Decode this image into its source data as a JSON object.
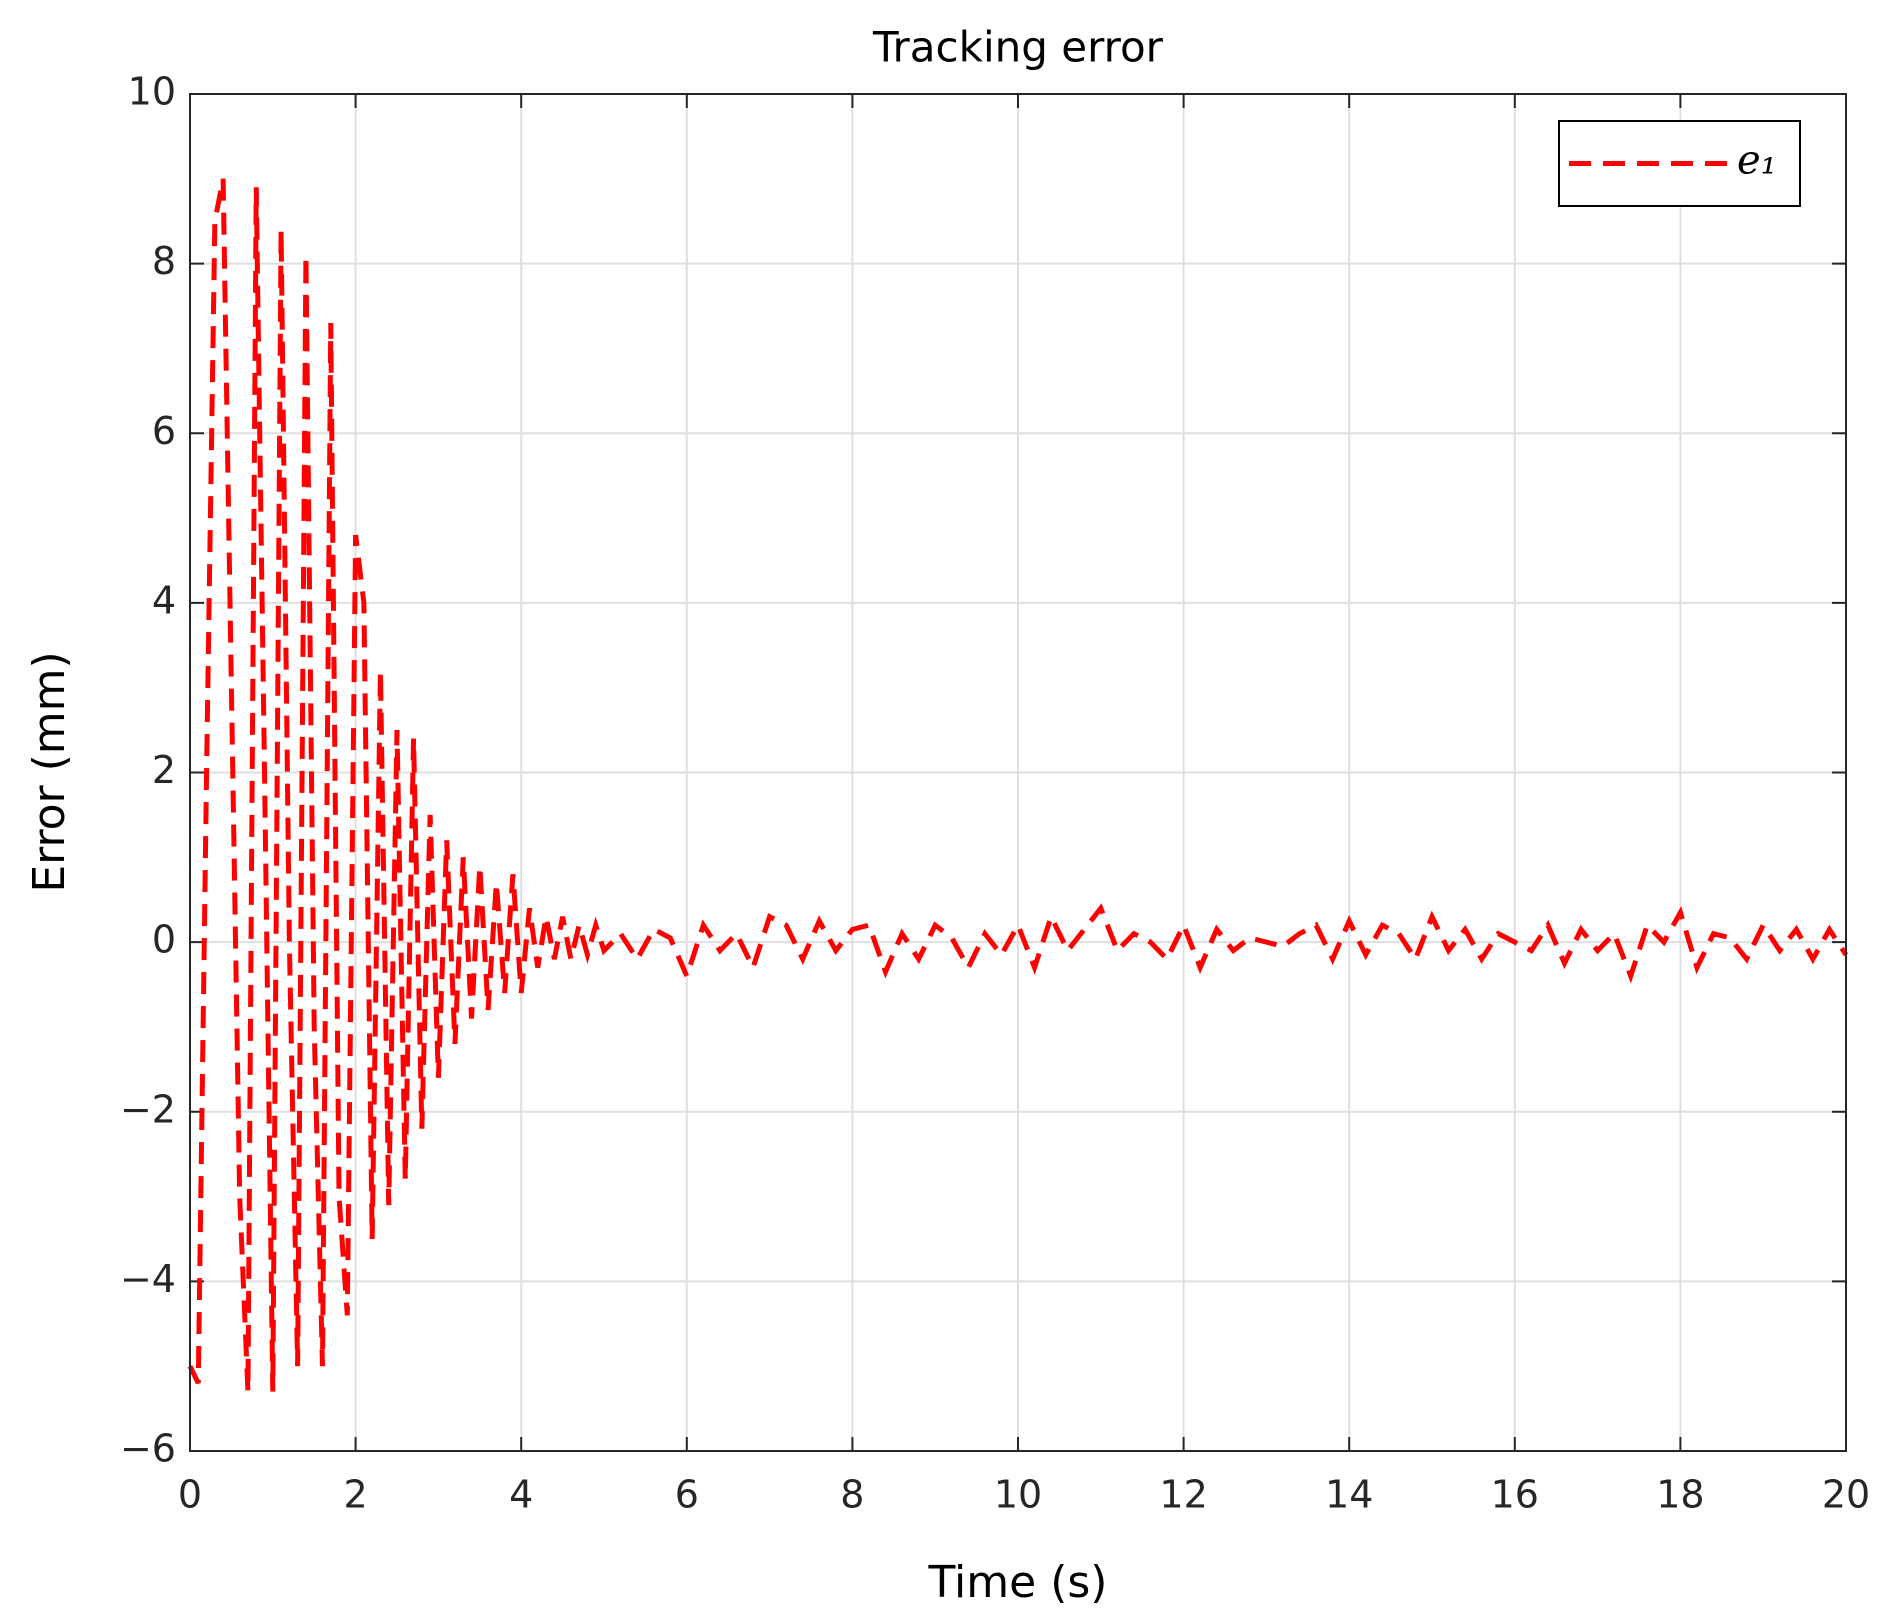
{
  "chart_data": {
    "type": "line",
    "title": "Tracking error",
    "xlabel": "Time (s)",
    "ylabel": "Error (mm)",
    "x": [
      0,
      0.1,
      0.2,
      0.3,
      0.4,
      0.5,
      0.6,
      0.7,
      0.8,
      0.9,
      1.0,
      1.1,
      1.2,
      1.3,
      1.4,
      1.5,
      1.6,
      1.7,
      1.8,
      1.9,
      2.0,
      2.1,
      2.2,
      2.3,
      2.4,
      2.5,
      2.6,
      2.7,
      2.8,
      2.9,
      3.0,
      3.1,
      3.2,
      3.3,
      3.4,
      3.5,
      3.6,
      3.7,
      3.8,
      3.9,
      4.0,
      4.1,
      4.2,
      4.3,
      4.4,
      4.5,
      4.6,
      4.7,
      4.8,
      4.9,
      5.0,
      5.2,
      5.4,
      5.6,
      5.8,
      6.0,
      6.2,
      6.4,
      6.6,
      6.8,
      7.0,
      7.2,
      7.4,
      7.6,
      7.8,
      8.0,
      8.2,
      8.4,
      8.6,
      8.8,
      9.0,
      9.2,
      9.4,
      9.6,
      9.8,
      10.0,
      10.2,
      10.4,
      10.6,
      10.8,
      11.0,
      11.2,
      11.4,
      11.6,
      11.8,
      12.0,
      12.2,
      12.4,
      12.6,
      12.8,
      13.0,
      13.2,
      13.4,
      13.6,
      13.8,
      14.0,
      14.2,
      14.4,
      14.6,
      14.8,
      15.0,
      15.2,
      15.4,
      15.6,
      15.8,
      16.0,
      16.2,
      16.4,
      16.6,
      16.8,
      17.0,
      17.2,
      17.4,
      17.6,
      17.8,
      18.0,
      18.2,
      18.4,
      18.6,
      18.8,
      19.0,
      19.2,
      19.4,
      19.6,
      19.8,
      20.0
    ],
    "series": [
      {
        "name": "e₁",
        "color": "#ff0000",
        "values": [
          -5.0,
          -5.2,
          2,
          8.5,
          9,
          3,
          -3,
          -5.3,
          8.9,
          2,
          -5.3,
          8.4,
          0,
          -5,
          8.1,
          -1,
          -5,
          7.3,
          -3,
          -4.4,
          4.8,
          4.0,
          -3.5,
          3.2,
          -3.1,
          2.5,
          -2.8,
          2.4,
          -2.2,
          1.5,
          -1.6,
          1.2,
          -1.2,
          1.0,
          -0.9,
          0.9,
          -0.8,
          0.7,
          -0.6,
          0.8,
          -0.6,
          0.4,
          -0.3,
          0.3,
          -0.2,
          0.3,
          -0.2,
          0.2,
          -0.15,
          0.2,
          -0.1,
          0.1,
          -0.2,
          0.15,
          0.05,
          -0.4,
          0.2,
          -0.1,
          0.1,
          -0.3,
          0.3,
          0.2,
          -0.2,
          0.25,
          -0.1,
          0.15,
          0.2,
          -0.35,
          0.1,
          -0.2,
          0.2,
          0.05,
          -0.3,
          0.1,
          -0.15,
          0.2,
          -0.3,
          0.3,
          -0.1,
          0.15,
          0.4,
          -0.1,
          0.1,
          0.0,
          -0.2,
          0.2,
          -0.3,
          0.15,
          -0.1,
          0.05,
          0.0,
          -0.05,
          0.1,
          0.2,
          -0.2,
          0.25,
          -0.15,
          0.2,
          0.1,
          -0.2,
          0.3,
          -0.1,
          0.15,
          -0.2,
          0.1,
          0.0,
          -0.1,
          0.2,
          -0.25,
          0.15,
          -0.1,
          0.1,
          -0.4,
          0.2,
          0.0,
          0.35,
          -0.3,
          0.1,
          0.05,
          -0.2,
          0.2,
          -0.1,
          0.15,
          -0.2,
          0.15,
          -0.15
        ]
      }
    ],
    "xlim": [
      0,
      20
    ],
    "xticks": [
      0,
      2,
      4,
      6,
      8,
      10,
      12,
      14,
      16,
      18,
      20
    ],
    "ylim": [
      -6,
      10
    ],
    "yticks": [
      {
        "value": -6,
        "label": "−6"
      },
      {
        "value": -4,
        "label": "−4"
      },
      {
        "value": -2,
        "label": "−2"
      },
      0,
      2,
      4,
      6,
      8,
      10
    ],
    "grid": true,
    "line_style": "dashed",
    "legend": "upper right"
  }
}
